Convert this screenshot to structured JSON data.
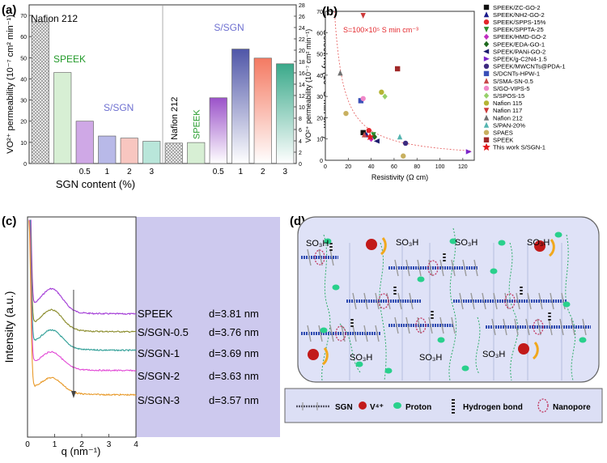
{
  "panels": {
    "a": "(a)",
    "b": "(b)",
    "c": "(c)",
    "d": "(d)"
  },
  "chart_data": [
    {
      "type": "bar",
      "subplot": "left",
      "categories": [
        "",
        "",
        "0.5",
        "1",
        "2",
        "3"
      ],
      "values": [
        67,
        43,
        20,
        13,
        12,
        10.5
      ],
      "bar_labels": [
        "Nafion 212",
        "SPEEK",
        "S/SGN",
        "",
        "",
        ""
      ],
      "xlabel": "SGN content (%)",
      "ylabel": "VO²⁺ permeability (10⁻⁷ cm² min⁻¹)",
      "ylim": [
        0,
        75
      ],
      "yticks": [
        0,
        10,
        20,
        30,
        40,
        50,
        60,
        70
      ],
      "colors": [
        "hatched",
        "#d7efd4",
        "#cfa8e6",
        "#b8b9e8",
        "#f8c6c0",
        "#b9e6da"
      ]
    },
    {
      "type": "bar",
      "subplot": "right",
      "categories": [
        "",
        "",
        "0.5",
        "1",
        "2",
        "3"
      ],
      "values": [
        3.6,
        3.7,
        11.6,
        20.2,
        18.6,
        17.6
      ],
      "bar_labels": [
        "Nafion 212",
        "SPEEK",
        "S/SGN",
        "",
        "",
        ""
      ],
      "ylabel": "Selectivity (10⁵ S min cm⁻³)",
      "ylim": [
        0,
        28
      ],
      "yticks": [
        0,
        2,
        4,
        6,
        8,
        10,
        12,
        14,
        16,
        18,
        20,
        22,
        24,
        26,
        28
      ],
      "colors": [
        "hatched",
        "#d7efd4",
        "#9b52c9",
        "#4f56a8",
        "#f47a62",
        "#3aa98a"
      ]
    },
    {
      "type": "scatter",
      "xlabel": "Resistivity (Ω cm)",
      "ylabel": "VO²⁺ permeability (10⁻⁷ cm² min⁻¹)",
      "xlim": [
        0,
        130
      ],
      "ylim": [
        0,
        70
      ],
      "xticks": [
        0,
        20,
        40,
        60,
        80,
        100,
        120
      ],
      "yticks": [
        0,
        10,
        20,
        30,
        40,
        50,
        60,
        70
      ],
      "annotation": "S=100×10⁵ S min cm⁻³",
      "series": [
        {
          "name": "SPEEK/ZC-GO-2",
          "marker": "square",
          "color": "#111111",
          "points": [
            [
              33,
              13
            ]
          ]
        },
        {
          "name": "SPEEK/NH2-GO-2",
          "marker": "triangle",
          "color": "#1a1a8c",
          "points": [
            [
              36,
              12
            ]
          ]
        },
        {
          "name": "SPEEK/SPPS-15%",
          "marker": "circle",
          "color": "#e3262b",
          "points": [
            [
              38,
              14
            ]
          ]
        },
        {
          "name": "SPEEK/SPPTA-25",
          "marker": "triangle-down",
          "color": "#2d8f2d",
          "points": [
            [
              42,
              12
            ]
          ]
        },
        {
          "name": "SPEEK/HMD-GO-2",
          "marker": "diamond",
          "color": "#c02ec0",
          "points": [
            [
              40,
              10
            ]
          ]
        },
        {
          "name": "SPEEK/EDA-GO-1",
          "marker": "diamond",
          "color": "#1f6a1f",
          "points": [
            [
              43,
              11
            ]
          ]
        },
        {
          "name": "SPEEK/PANi-GO-2",
          "marker": "triangle-left",
          "color": "#1b1b6d",
          "points": [
            [
              45,
              9
            ]
          ]
        },
        {
          "name": "SPEEK/g-C2N4-1.5",
          "marker": "triangle-right",
          "color": "#7a24c9",
          "points": [
            [
              125,
              4
            ]
          ]
        },
        {
          "name": "SPEEK/MWCNTs@PDA-1",
          "marker": "circle",
          "color": "#3d2a7f",
          "points": [
            [
              70,
              8
            ]
          ]
        },
        {
          "name": "S/DCNTs-HPW-1",
          "marker": "square",
          "color": "#3a4fb8",
          "points": [
            [
              31,
              28
            ]
          ]
        },
        {
          "name": "S/SMA-SN-0.5",
          "marker": "triangle",
          "color": "#c84848",
          "points": [
            [
              34,
              12
            ]
          ]
        },
        {
          "name": "S/GO-VIPS-5",
          "marker": "circle",
          "color": "#f087c8",
          "points": [
            [
              33,
              29
            ]
          ]
        },
        {
          "name": "S/SPOS-15",
          "marker": "diamond",
          "color": "#97d06a",
          "points": [
            [
              52,
              30
            ]
          ]
        },
        {
          "name": "Nafion 115",
          "marker": "circle",
          "color": "#b5b534",
          "points": [
            [
              49,
              32
            ]
          ]
        },
        {
          "name": "Nafion 117",
          "marker": "triangle-down",
          "color": "#cc3a3a",
          "points": [
            [
              33,
              68
            ]
          ]
        },
        {
          "name": "Nafion 212",
          "marker": "triangle",
          "color": "#707070",
          "points": [
            [
              13,
              41
            ]
          ]
        },
        {
          "name": "S/PAN-20%",
          "marker": "triangle",
          "color": "#55b5b0",
          "points": [
            [
              65,
              11
            ]
          ]
        },
        {
          "name": "SPAES",
          "marker": "circle",
          "color": "#c8b060",
          "points": [
            [
              68,
              2
            ],
            [
              18,
              22
            ]
          ]
        },
        {
          "name": "SPEEK",
          "marker": "square",
          "color": "#a02828",
          "points": [
            [
              63,
              43
            ]
          ]
        },
        {
          "name": "This work S/SGN-1",
          "marker": "star",
          "color": "#e31a1c",
          "points": [
            [
              39,
              11
            ]
          ]
        }
      ]
    },
    {
      "type": "line",
      "xlabel": "q (nm⁻¹)",
      "ylabel": "Intensity (a.u.)",
      "xlim": [
        0,
        4
      ],
      "xticks": [
        0,
        1,
        2,
        3,
        4
      ],
      "series": [
        {
          "name": "SPEEK",
          "color": "#a23ad6",
          "d_label": "d=3.81 nm",
          "peak_q": 1.65
        },
        {
          "name": "S/SGN-0.5",
          "color": "#8a8b2a",
          "d_label": "d=3.76 nm",
          "peak_q": 1.67
        },
        {
          "name": "S/SGN-1",
          "color": "#2e9e96",
          "d_label": "d=3.69 nm",
          "peak_q": 1.7
        },
        {
          "name": "S/SGN-2",
          "color": "#e24ad6",
          "d_label": "d=3.63 nm",
          "peak_q": 1.73
        },
        {
          "name": "S/SGN-3",
          "color": "#e89a2a",
          "d_label": "d=3.57 nm",
          "peak_q": 1.76
        }
      ]
    }
  ],
  "schematic": {
    "so3h_label": "SO₃H",
    "legend": {
      "sgn": "SGN",
      "v4": "V⁴⁺",
      "proton": "Proton",
      "hbond": "Hydrogen bond",
      "nanopore": "Nanopore"
    }
  }
}
